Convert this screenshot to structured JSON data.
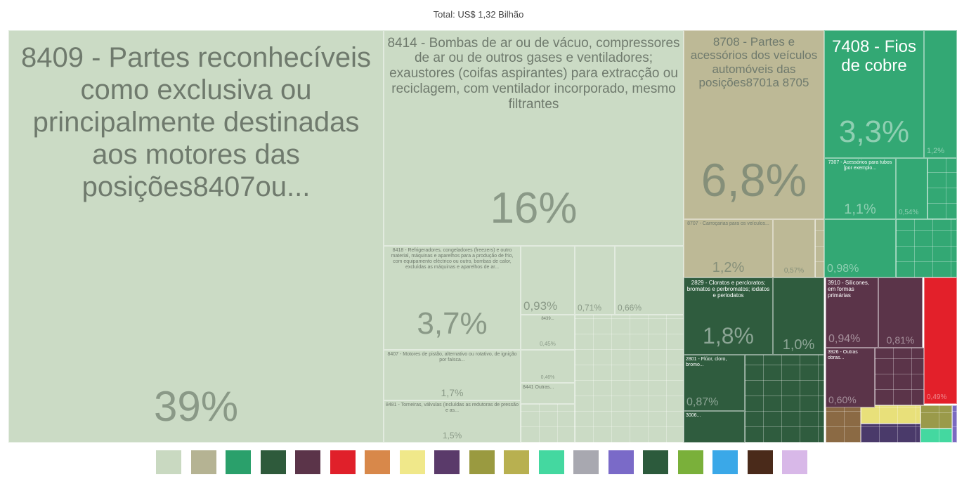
{
  "chart_data": {
    "type": "treemap",
    "title": "Total: US$ 1,32 Bilhão",
    "tiles": [
      {
        "label": "8409 - Partes reconhecíveis como exclusiva ou principalmente destinadas aos motores das posições8407ou...",
        "value": 39,
        "value_label": "39%",
        "color": "#cbdbc5"
      },
      {
        "label": "8414 - Bombas de ar ou de vácuo, compressores de ar ou de outros gases e ventiladores; exaustores (coifas aspirantes) para extracção ou reciclagem, com ventilador incorporado, mesmo filtrantes",
        "value": 16,
        "value_label": "16%",
        "color": "#cbdbc5"
      },
      {
        "label": "8418 - Refrigeradores, congeladores (freezers) e outro material, máquinas e aparelhos para a produção de frio, com equipamento eléctrico ou outro, bombas de calor, excluídas as máquinas e aparelhos de ar...",
        "value": 3.7,
        "value_label": "3,7%",
        "color": "#cbdbc5"
      },
      {
        "label": "8407 - Motores de pistão, alternativo ou rotativo, de ignição por faísca...",
        "value": 1.7,
        "value_label": "1,7%",
        "color": "#cbdbc5"
      },
      {
        "label": "8481 - Torneiras, válvulas (incluídas as redutoras de pressão e as...",
        "value": 1.5,
        "value_label": "1,5%",
        "color": "#cbdbc5"
      },
      {
        "value": 0.93,
        "value_label": "0,93%",
        "color": "#cbdbc5"
      },
      {
        "value": 0.71,
        "value_label": "0,71%",
        "color": "#cbdbc5"
      },
      {
        "value": 0.66,
        "value_label": "0,66%",
        "color": "#cbdbc5"
      },
      {
        "label": "8439...",
        "value": 0.45,
        "value_label": "0,45%",
        "color": "#cbdbc5"
      },
      {
        "value": 0.46,
        "value_label": "0,46%",
        "color": "#cbdbc5"
      },
      {
        "label": "8441 Outras...",
        "value": 0.3,
        "color": "#cbdbc5"
      },
      {
        "label": "8708 - Partes e acessórios dos veículos automóveis das posições8701a 8705",
        "value": 6.8,
        "value_label": "6,8%",
        "color": "#bdb996"
      },
      {
        "label": "8707 - Carroçarias para os veículos...",
        "value": 1.2,
        "value_label": "1,2%",
        "color": "#bdb996"
      },
      {
        "value": 0.57,
        "value_label": "0,57%",
        "color": "#bdb996"
      },
      {
        "label": "7408 - Fios de cobre",
        "value": 3.3,
        "value_label": "3,3%",
        "color": "#33a874"
      },
      {
        "value": 1.2,
        "value_label": "1,2%",
        "color": "#33a874"
      },
      {
        "label": "7307 - Acessórios para tubos [por exemplo...",
        "value": 1.1,
        "value_label": "1,1%",
        "color": "#33a874"
      },
      {
        "value": 0.54,
        "value_label": "0,54%",
        "color": "#33a874"
      },
      {
        "value": 0.98,
        "value_label": "0,98%",
        "color": "#33a874"
      },
      {
        "label": "2829 - Cloratos e percloratos; bromatos e perbromatos; iodatos e periodatos",
        "value": 1.8,
        "value_label": "1,8%",
        "color": "#2f5c3e"
      },
      {
        "value": 1.0,
        "value_label": "1,0%",
        "color": "#2f5c3e"
      },
      {
        "label": "2801 - Flúor, cloro, bromo...",
        "value": 0.87,
        "value_label": "0,87%",
        "color": "#2f5c3e"
      },
      {
        "label": "3006...",
        "value": 0.4,
        "color": "#2f5c3e"
      },
      {
        "label": "3910 - Silicones, em formas primárias",
        "value": 0.94,
        "value_label": "0,94%",
        "color": "#5b3449"
      },
      {
        "value": 0.81,
        "value_label": "0,81%",
        "color": "#5b3449"
      },
      {
        "label": "3926 - Outras obras...",
        "value": 0.6,
        "value_label": "0,60%",
        "color": "#5b3449"
      },
      {
        "value": 0.49,
        "value_label": "0,49%",
        "color": "#e3202a"
      }
    ]
  }
}
